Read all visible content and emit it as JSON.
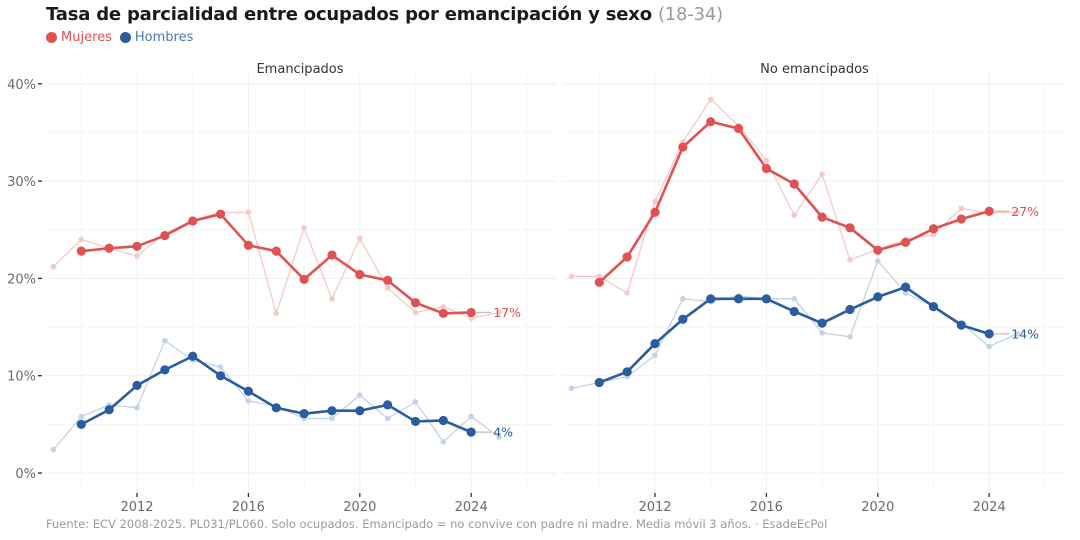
{
  "title": {
    "main": "Tasa de parcialidad entre ocupados por emancipación y sexo",
    "suffix": "(18-34)"
  },
  "legend": [
    {
      "label": "Mujeres",
      "color": "#e05252"
    },
    {
      "label": "Hombres",
      "color": "#2a5d9f"
    }
  ],
  "caption": "Fuente: ECV 2008-2025. PL031/PL060. Solo ocupados. Emancipado = no convive con padre ni madre. Media móvil 3 años. · EsadeEcPol",
  "chart_data": [
    {
      "type": "line",
      "title": "Emancipados",
      "xlabel": "",
      "ylabel": "",
      "ylim": [
        0,
        40
      ],
      "yticks": [
        0,
        10,
        20,
        30,
        40
      ],
      "ytick_labels": [
        "0%",
        "10%",
        "20%",
        "30%",
        "40%"
      ],
      "xticks": [
        2012,
        2016,
        2020,
        2024
      ],
      "grid": true,
      "series": [
        {
          "name": "Mujeres",
          "color": "#e05252",
          "end_label": "17%",
          "raw": {
            "x": [
              2009,
              2010,
              2011,
              2012,
              2013,
              2014,
              2015,
              2016,
              2017,
              2018,
              2019,
              2020,
              2021,
              2022,
              2023,
              2024,
              2025
            ],
            "y": [
              21.2,
              24.0,
              23.1,
              22.3,
              24.6,
              26.0,
              26.8,
              26.8,
              16.4,
              25.2,
              17.9,
              24.1,
              19.0,
              16.5,
              17.1,
              15.9,
              16.5
            ]
          },
          "smoothed": {
            "x": [
              2010,
              2011,
              2012,
              2013,
              2014,
              2015,
              2016,
              2017,
              2018,
              2019,
              2020,
              2021,
              2022,
              2023,
              2024
            ],
            "y": [
              22.8,
              23.1,
              23.3,
              24.4,
              25.9,
              26.6,
              23.4,
              22.8,
              19.9,
              22.4,
              20.4,
              19.8,
              17.5,
              16.4,
              16.5
            ]
          }
        },
        {
          "name": "Hombres",
          "color": "#2a5d9f",
          "end_label": "4%",
          "raw": {
            "x": [
              2009,
              2010,
              2011,
              2012,
              2013,
              2014,
              2015,
              2016,
              2017,
              2018,
              2019,
              2020,
              2021,
              2022,
              2023,
              2024,
              2025
            ],
            "y": [
              2.4,
              5.8,
              7.0,
              6.7,
              13.6,
              11.6,
              10.9,
              7.4,
              6.9,
              5.6,
              5.6,
              8.0,
              5.6,
              7.3,
              3.2,
              5.8,
              3.7
            ]
          },
          "smoothed": {
            "x": [
              2010,
              2011,
              2012,
              2013,
              2014,
              2015,
              2016,
              2017,
              2018,
              2019,
              2020,
              2021,
              2022,
              2023,
              2024
            ],
            "y": [
              5.0,
              6.5,
              9.0,
              10.6,
              12.0,
              10.0,
              8.4,
              6.7,
              6.1,
              6.4,
              6.4,
              7.0,
              5.3,
              5.4,
              4.2
            ]
          }
        }
      ]
    },
    {
      "type": "line",
      "title": "No emancipados",
      "xlabel": "",
      "ylabel": "",
      "ylim": [
        0,
        40
      ],
      "xticks": [
        2012,
        2016,
        2020,
        2024
      ],
      "grid": true,
      "series": [
        {
          "name": "Mujeres",
          "color": "#e05252",
          "end_label": "27%",
          "raw": {
            "x": [
              2009,
              2010,
              2011,
              2012,
              2013,
              2014,
              2015,
              2016,
              2017,
              2018,
              2019,
              2020,
              2021,
              2022,
              2023,
              2024,
              2025
            ],
            "y": [
              20.2,
              20.2,
              18.5,
              27.9,
              34.0,
              38.4,
              35.7,
              32.1,
              26.5,
              30.7,
              21.9,
              23.0,
              24.0,
              24.5,
              27.2,
              26.7,
              26.8
            ]
          },
          "smoothed": {
            "x": [
              2010,
              2011,
              2012,
              2013,
              2014,
              2015,
              2016,
              2017,
              2018,
              2019,
              2020,
              2021,
              2022,
              2023,
              2024
            ],
            "y": [
              19.6,
              22.2,
              26.8,
              33.5,
              36.1,
              35.4,
              31.3,
              29.7,
              26.3,
              25.2,
              22.9,
              23.7,
              25.1,
              26.1,
              26.9
            ]
          }
        },
        {
          "name": "Hombres",
          "color": "#2a5d9f",
          "end_label": "14%",
          "raw": {
            "x": [
              2009,
              2010,
              2011,
              2012,
              2013,
              2014,
              2015,
              2016,
              2017,
              2018,
              2019,
              2020,
              2021,
              2022,
              2023,
              2024,
              2025
            ],
            "y": [
              8.7,
              9.3,
              9.9,
              12.1,
              17.9,
              17.6,
              18.2,
              17.9,
              17.9,
              14.4,
              14.0,
              21.8,
              18.5,
              17.1,
              15.4,
              13.0,
              14.3
            ]
          },
          "smoothed": {
            "x": [
              2010,
              2011,
              2012,
              2013,
              2014,
              2015,
              2016,
              2017,
              2018,
              2019,
              2020,
              2021,
              2022,
              2023,
              2024
            ],
            "y": [
              9.3,
              10.4,
              13.3,
              15.8,
              17.9,
              17.9,
              17.9,
              16.6,
              15.4,
              16.8,
              18.1,
              19.1,
              17.1,
              15.2,
              14.3
            ]
          }
        }
      ]
    }
  ]
}
